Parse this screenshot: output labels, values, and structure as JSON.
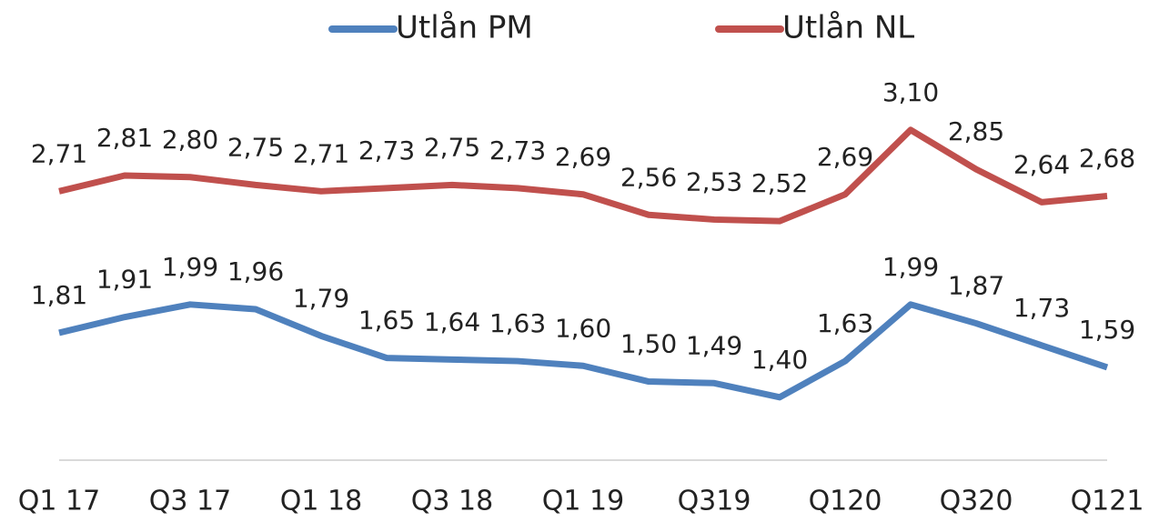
{
  "chart_data": {
    "type": "line",
    "categories": [
      "Q1 17",
      null,
      "Q3 17",
      null,
      "Q1 18",
      null,
      "Q3 18",
      null,
      "Q1 19",
      null,
      "Q319",
      null,
      "Q120",
      null,
      "Q320",
      null,
      "Q121"
    ],
    "series": [
      {
        "name": "Utlån PM",
        "color": "#4f81bd",
        "values": [
          1.81,
          1.91,
          1.99,
          1.96,
          1.79,
          1.65,
          1.64,
          1.63,
          1.6,
          1.5,
          1.49,
          1.4,
          1.63,
          1.99,
          1.87,
          1.73,
          1.59
        ],
        "value_labels": [
          "1,81",
          "1,91",
          "1,99",
          "1,96",
          "1,79",
          "1,65",
          "1,64",
          "1,63",
          "1,60",
          "1,50",
          "1,49",
          "1,40",
          "1,63",
          "1,99",
          "1,87",
          "1,73",
          "1,59"
        ]
      },
      {
        "name": "Utlån NL",
        "color": "#c0504d",
        "values": [
          2.71,
          2.81,
          2.8,
          2.75,
          2.71,
          2.73,
          2.75,
          2.73,
          2.69,
          2.56,
          2.53,
          2.52,
          2.69,
          3.1,
          2.85,
          2.64,
          2.68
        ],
        "value_labels": [
          "2,71",
          "2,81",
          "2,80",
          "2,75",
          "2,71",
          "2,73",
          "2,75",
          "2,73",
          "2,69",
          "2,56",
          "2,53",
          "2,52",
          "2,69",
          "3,10",
          "2,85",
          "2,64",
          "2,68"
        ]
      }
    ],
    "ylim": [
      1,
      3.4
    ],
    "legend": "top"
  }
}
